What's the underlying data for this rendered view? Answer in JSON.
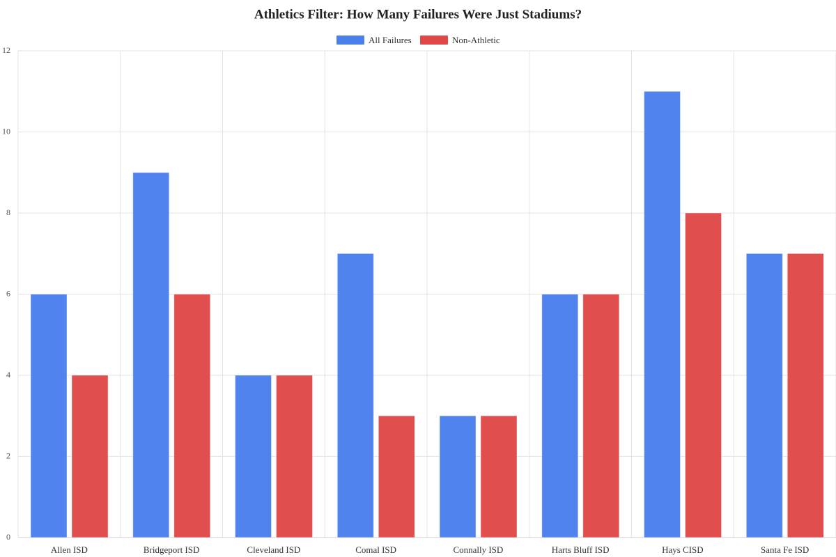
{
  "chart_data": {
    "type": "bar",
    "title": "Athletics Filter: How Many Failures Were Just Stadiums?",
    "categories": [
      "Allen ISD",
      "Bridgeport ISD",
      "Cleveland ISD",
      "Comal ISD",
      "Connally ISD",
      "Harts Bluff ISD",
      "Hays CISD",
      "Santa Fe ISD"
    ],
    "series": [
      {
        "name": "All Failures",
        "color": "#4a7fec",
        "values": [
          6,
          9,
          4,
          7,
          3,
          6,
          11,
          7
        ]
      },
      {
        "name": "Non-Athletic",
        "color": "#e04848",
        "values": [
          4,
          6,
          4,
          3,
          3,
          6,
          8,
          7
        ]
      }
    ],
    "ylim": [
      0,
      12
    ],
    "yticks": [
      0,
      2,
      4,
      6,
      8,
      10,
      12
    ],
    "grid": true
  }
}
